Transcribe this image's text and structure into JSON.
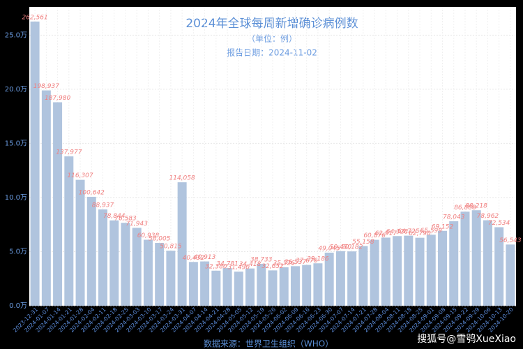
{
  "chart_data": {
    "type": "bar",
    "title": "2024年全球每周新增确诊病例数",
    "subtitle": "（单位：例）",
    "report_date": "报告日期：2024-11-02",
    "source": "数据来源：世界卫生组织（WHO）",
    "watermark": "搜狐号@雪鸮XueXiao",
    "categories": [
      "2023-12-31",
      "2024-01-07",
      "2024-01-14",
      "2024-01-21",
      "2024-01-28",
      "2024-02-04",
      "2024-02-11",
      "2024-02-18",
      "2024-02-25",
      "2024-03-03",
      "2024-03-10",
      "2024-03-17",
      "2024-03-24",
      "2024-03-31",
      "2024-04-07",
      "2024-04-14",
      "2024-04-21",
      "2024-04-28",
      "2024-05-05",
      "2024-05-12",
      "2024-05-19",
      "2024-05-26",
      "2024-06-02",
      "2024-06-09",
      "2024-06-16",
      "2024-06-23",
      "2024-06-30",
      "2024-07-07",
      "2024-07-14",
      "2024-07-21",
      "2024-07-28",
      "2024-08-04",
      "2024-08-11",
      "2024-08-18",
      "2024-08-25",
      "2024-09-01",
      "2024-09-08",
      "2024-09-15",
      "2024-09-22",
      "2024-09-29",
      "2024-10-06",
      "2024-10-13",
      "2024-10-20"
    ],
    "values": [
      262561,
      198937,
      187980,
      137977,
      116307,
      100642,
      88937,
      78844,
      76583,
      71943,
      60938,
      58005,
      50815,
      114058,
      40432,
      40913,
      32380,
      34781,
      31490,
      34418,
      38733,
      32652,
      35526,
      36537,
      37676,
      39186,
      49045,
      50450,
      50182,
      55158,
      60876,
      62917,
      64328,
      64725,
      62790,
      65599,
      69152,
      78043,
      86888,
      88218,
      78962,
      72534,
      56543
    ],
    "value_labels": [
      "262,561",
      "198,937",
      "187,980",
      "137,977",
      "116,307",
      "100,642",
      "88,937",
      "78,844",
      "76,583",
      "71,943",
      "60,938",
      "58,005",
      "50,815",
      "114,058",
      "40,432",
      "40,913",
      "32,380",
      "34,781",
      "31,490",
      "34,418",
      "38,733",
      "32,652",
      "35,526",
      "36,537",
      "37,676",
      "39,186",
      "49,045",
      "50,450",
      "50,182",
      "55,158",
      "60,876",
      "62,917",
      "64,328",
      "64,725",
      "62,790",
      "65,599",
      "69,152",
      "78,043",
      "86,888",
      "88,218",
      "78,962",
      "72,534",
      "56,543"
    ],
    "color": "#b0c4de",
    "ylim": [
      0,
      276000
    ],
    "yticks": [
      {
        "value": 0,
        "label": "0.0万"
      },
      {
        "value": 50000,
        "label": "5.0万"
      },
      {
        "value": 100000,
        "label": "10.0万"
      },
      {
        "value": 150000,
        "label": "15.0万"
      },
      {
        "value": 200000,
        "label": "20.0万"
      },
      {
        "value": 250000,
        "label": "25.0万"
      }
    ],
    "grid": true
  }
}
